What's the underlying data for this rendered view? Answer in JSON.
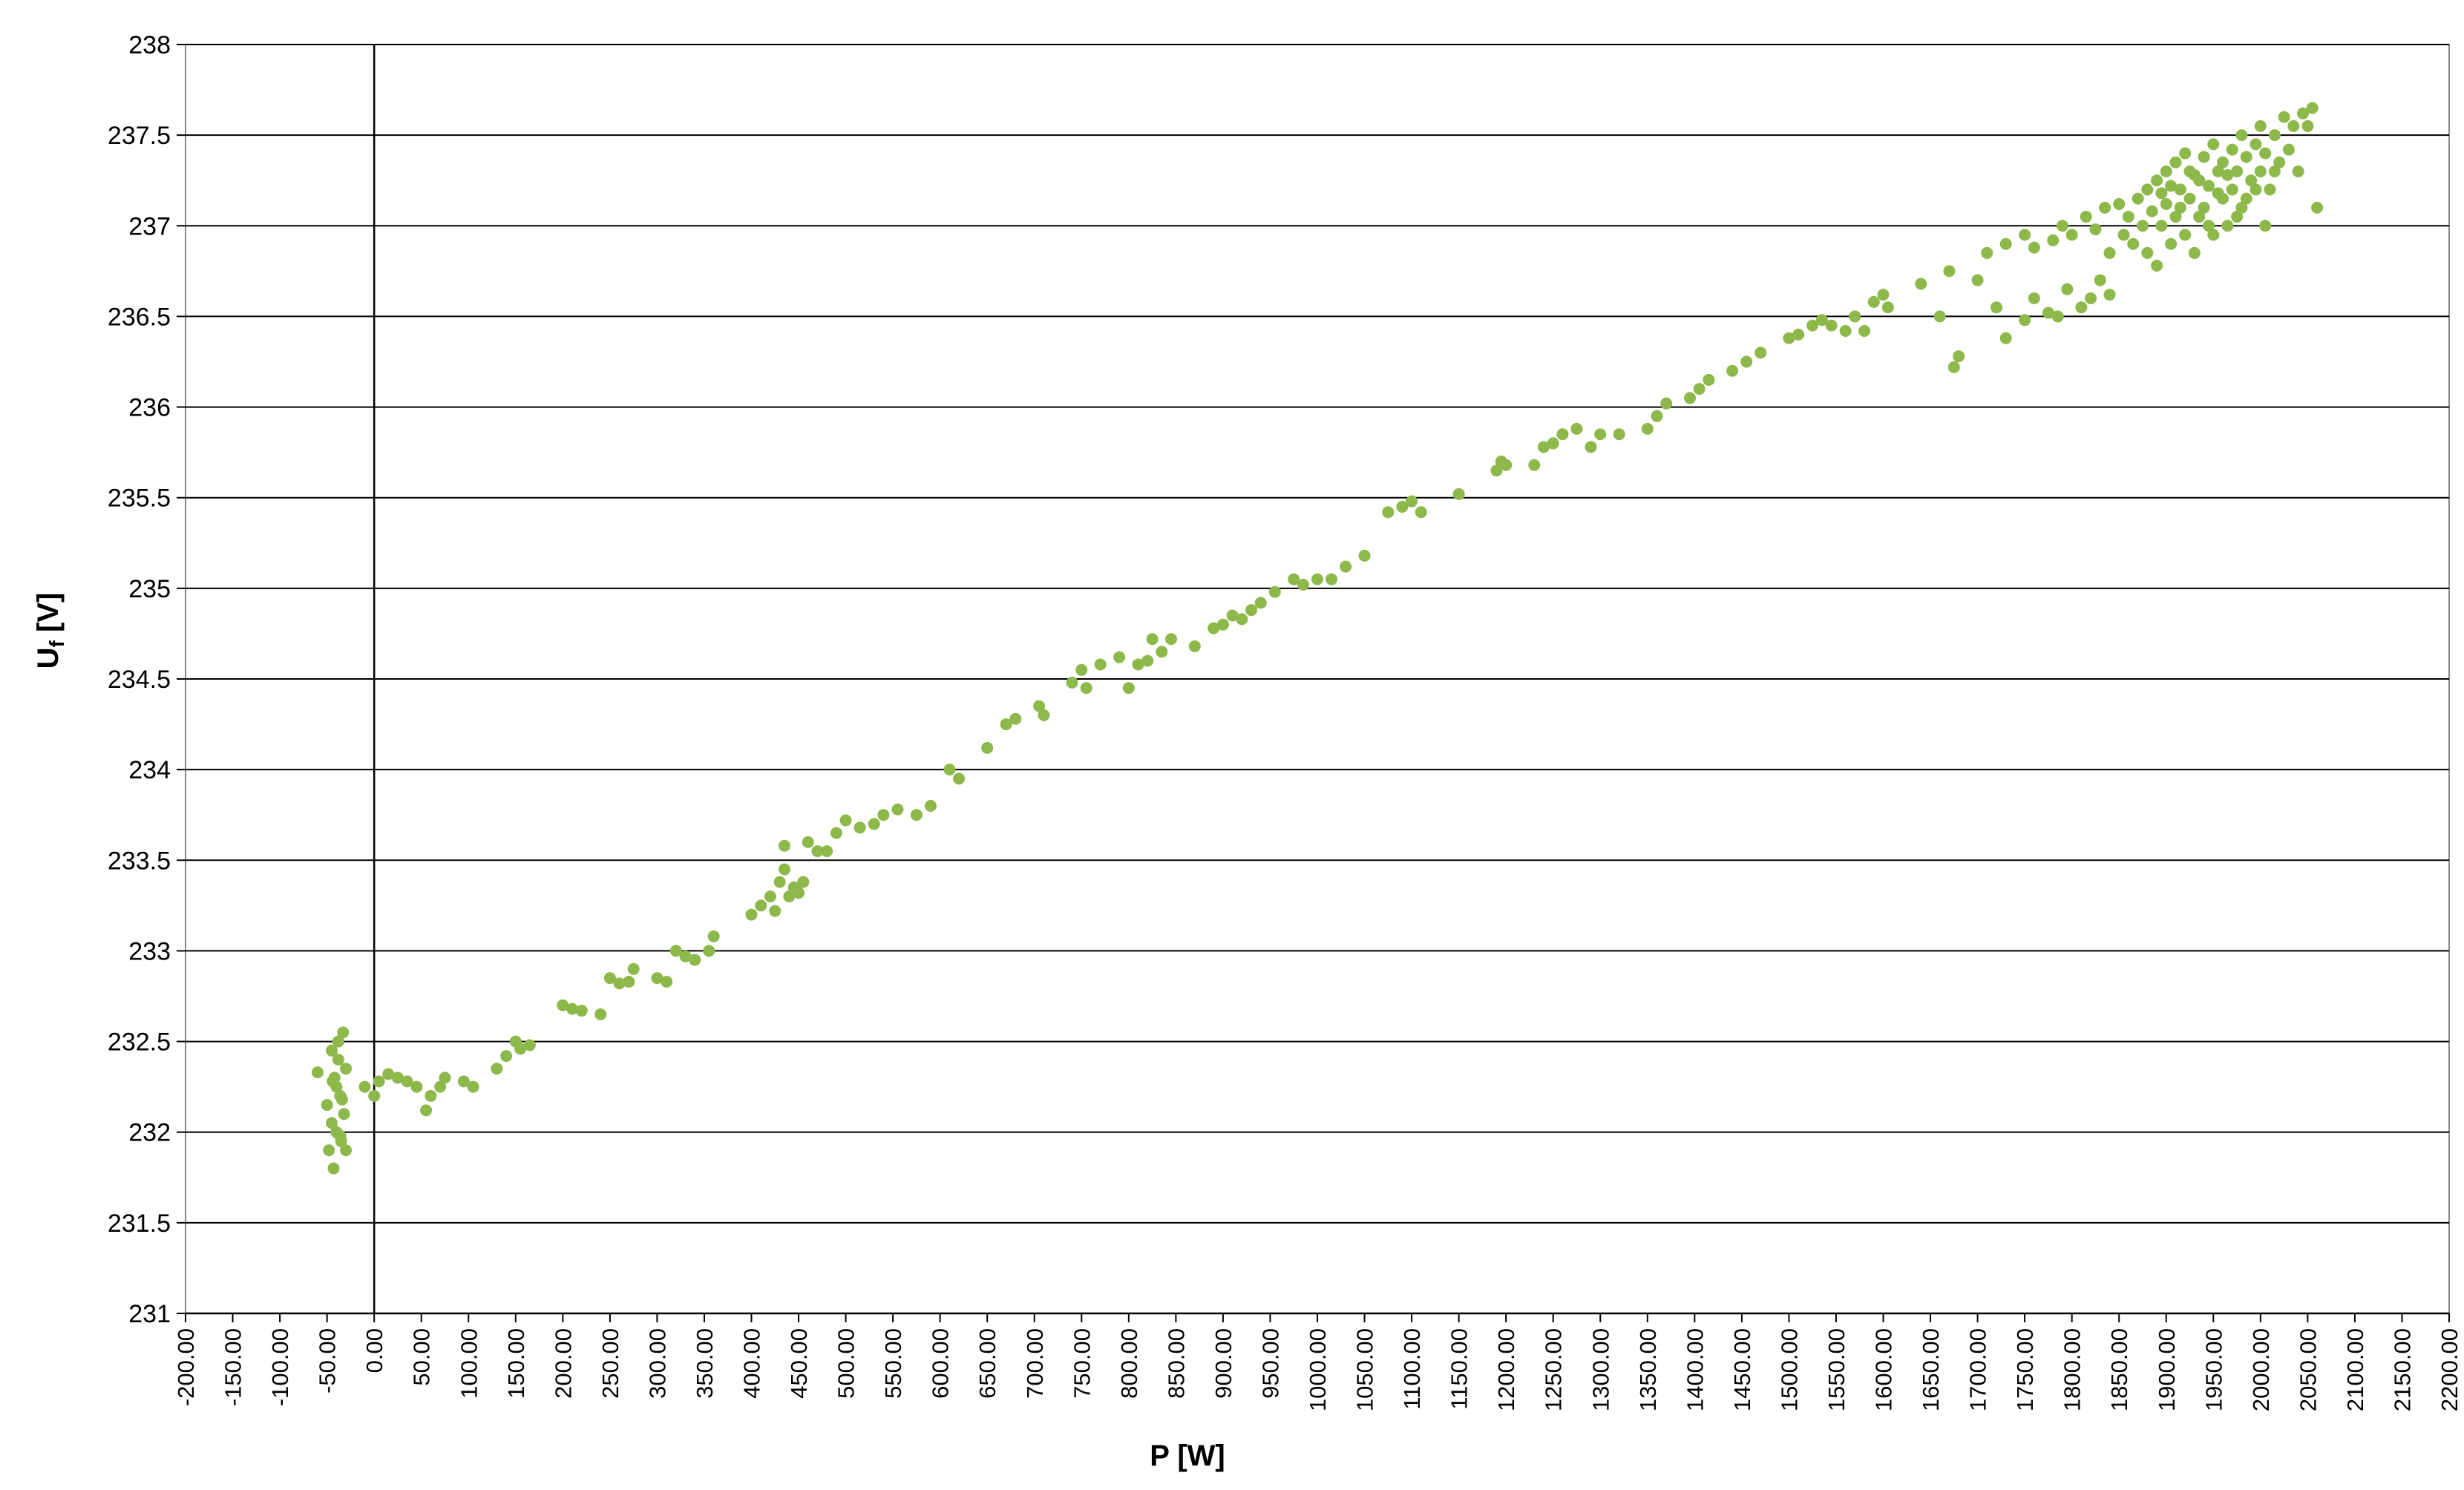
{
  "chart_data": {
    "type": "scatter",
    "title": "",
    "xlabel": "P [W]",
    "ylabel_main": "U",
    "ylabel_sub": "f",
    "ylabel_unit": " [V]",
    "xlim": [
      -200,
      2200
    ],
    "ylim": [
      231,
      238
    ],
    "grid": "horizontal",
    "marker_color": "#8DB84A",
    "xtick_labels": [
      "-200.00",
      "-150.00",
      "-100.00",
      "-50.00",
      "0.00",
      "50.00",
      "100.00",
      "150.00",
      "200.00",
      "250.00",
      "300.00",
      "350.00",
      "400.00",
      "450.00",
      "500.00",
      "550.00",
      "600.00",
      "650.00",
      "700.00",
      "750.00",
      "800.00",
      "850.00",
      "900.00",
      "950.00",
      "1000.00",
      "1050.00",
      "1100.00",
      "1150.00",
      "1200.00",
      "1250.00",
      "1300.00",
      "1350.00",
      "1400.00",
      "1450.00",
      "1500.00",
      "1550.00",
      "1600.00",
      "1650.00",
      "1700.00",
      "1750.00",
      "1800.00",
      "1850.00",
      "1900.00",
      "1950.00",
      "2000.00",
      "2050.00",
      "2100.00",
      "2150.00",
      "2200.00"
    ],
    "ytick_labels": [
      "231",
      "231.5",
      "232",
      "232.5",
      "233",
      "233.5",
      "234",
      "234.5",
      "235",
      "235.5",
      "236",
      "236.5",
      "237",
      "237.5",
      "238"
    ],
    "points": [
      [
        -60,
        232.33
      ],
      [
        -50,
        232.15
      ],
      [
        -48,
        231.9
      ],
      [
        -45,
        232.45
      ],
      [
        -43,
        231.8
      ],
      [
        -42,
        232.3
      ],
      [
        -40,
        232.0
      ],
      [
        -38,
        232.5
      ],
      [
        -36,
        232.2
      ],
      [
        -35,
        231.95
      ],
      [
        -33,
        232.55
      ],
      [
        -32,
        232.1
      ],
      [
        -30,
        232.35
      ],
      [
        -30,
        231.9
      ],
      [
        -45,
        232.05
      ],
      [
        -40,
        232.25
      ],
      [
        -38,
        232.4
      ],
      [
        -36,
        231.98
      ],
      [
        -34,
        232.18
      ],
      [
        -44,
        232.28
      ],
      [
        -10,
        232.25
      ],
      [
        0,
        232.2
      ],
      [
        5,
        232.28
      ],
      [
        15,
        232.32
      ],
      [
        25,
        232.3
      ],
      [
        35,
        232.28
      ],
      [
        45,
        232.25
      ],
      [
        55,
        232.12
      ],
      [
        60,
        232.2
      ],
      [
        70,
        232.25
      ],
      [
        75,
        232.3
      ],
      [
        95,
        232.28
      ],
      [
        105,
        232.25
      ],
      [
        130,
        232.35
      ],
      [
        140,
        232.42
      ],
      [
        150,
        232.5
      ],
      [
        155,
        232.46
      ],
      [
        165,
        232.48
      ],
      [
        200,
        232.7
      ],
      [
        210,
        232.68
      ],
      [
        220,
        232.67
      ],
      [
        240,
        232.65
      ],
      [
        250,
        232.85
      ],
      [
        260,
        232.82
      ],
      [
        270,
        232.83
      ],
      [
        275,
        232.9
      ],
      [
        300,
        232.85
      ],
      [
        310,
        232.83
      ],
      [
        320,
        233.0
      ],
      [
        330,
        232.97
      ],
      [
        340,
        232.95
      ],
      [
        355,
        233.0
      ],
      [
        360,
        233.08
      ],
      [
        400,
        233.2
      ],
      [
        410,
        233.25
      ],
      [
        420,
        233.3
      ],
      [
        425,
        233.22
      ],
      [
        430,
        233.38
      ],
      [
        435,
        233.45
      ],
      [
        440,
        233.3
      ],
      [
        445,
        233.35
      ],
      [
        450,
        233.32
      ],
      [
        455,
        233.38
      ],
      [
        435,
        233.58
      ],
      [
        460,
        233.6
      ],
      [
        470,
        233.55
      ],
      [
        480,
        233.55
      ],
      [
        490,
        233.65
      ],
      [
        500,
        233.72
      ],
      [
        515,
        233.68
      ],
      [
        530,
        233.7
      ],
      [
        540,
        233.75
      ],
      [
        555,
        233.78
      ],
      [
        575,
        233.75
      ],
      [
        590,
        233.8
      ],
      [
        610,
        234.0
      ],
      [
        620,
        233.95
      ],
      [
        650,
        234.12
      ],
      [
        670,
        234.25
      ],
      [
        680,
        234.28
      ],
      [
        705,
        234.35
      ],
      [
        710,
        234.3
      ],
      [
        740,
        234.48
      ],
      [
        750,
        234.55
      ],
      [
        755,
        234.45
      ],
      [
        770,
        234.58
      ],
      [
        790,
        234.62
      ],
      [
        800,
        234.45
      ],
      [
        810,
        234.58
      ],
      [
        820,
        234.6
      ],
      [
        825,
        234.72
      ],
      [
        835,
        234.65
      ],
      [
        845,
        234.72
      ],
      [
        870,
        234.68
      ],
      [
        890,
        234.78
      ],
      [
        900,
        234.8
      ],
      [
        910,
        234.85
      ],
      [
        920,
        234.83
      ],
      [
        930,
        234.88
      ],
      [
        940,
        234.92
      ],
      [
        955,
        234.98
      ],
      [
        975,
        235.05
      ],
      [
        985,
        235.02
      ],
      [
        1000,
        235.05
      ],
      [
        1015,
        235.05
      ],
      [
        1030,
        235.12
      ],
      [
        1050,
        235.18
      ],
      [
        1075,
        235.42
      ],
      [
        1090,
        235.45
      ],
      [
        1100,
        235.48
      ],
      [
        1110,
        235.42
      ],
      [
        1150,
        235.52
      ],
      [
        1190,
        235.65
      ],
      [
        1195,
        235.7
      ],
      [
        1200,
        235.68
      ],
      [
        1230,
        235.68
      ],
      [
        1240,
        235.78
      ],
      [
        1250,
        235.8
      ],
      [
        1260,
        235.85
      ],
      [
        1275,
        235.88
      ],
      [
        1290,
        235.78
      ],
      [
        1300,
        235.85
      ],
      [
        1320,
        235.85
      ],
      [
        1350,
        235.88
      ],
      [
        1360,
        235.95
      ],
      [
        1370,
        236.02
      ],
      [
        1395,
        236.05
      ],
      [
        1405,
        236.1
      ],
      [
        1415,
        236.15
      ],
      [
        1440,
        236.2
      ],
      [
        1455,
        236.25
      ],
      [
        1470,
        236.3
      ],
      [
        1500,
        236.38
      ],
      [
        1510,
        236.4
      ],
      [
        1525,
        236.45
      ],
      [
        1535,
        236.48
      ],
      [
        1545,
        236.45
      ],
      [
        1560,
        236.42
      ],
      [
        1570,
        236.5
      ],
      [
        1580,
        236.42
      ],
      [
        1590,
        236.58
      ],
      [
        1600,
        236.62
      ],
      [
        1605,
        236.55
      ],
      [
        1640,
        236.68
      ],
      [
        1660,
        236.5
      ],
      [
        1670,
        236.75
      ],
      [
        1675,
        236.22
      ],
      [
        1680,
        236.28
      ],
      [
        1700,
        236.7
      ],
      [
        1720,
        236.55
      ],
      [
        1730,
        236.38
      ],
      [
        1750,
        236.48
      ],
      [
        1760,
        236.6
      ],
      [
        1775,
        236.52
      ],
      [
        1785,
        236.5
      ],
      [
        1795,
        236.65
      ],
      [
        1810,
        236.55
      ],
      [
        1820,
        236.6
      ],
      [
        1830,
        236.7
      ],
      [
        1840,
        236.62
      ],
      [
        1710,
        236.85
      ],
      [
        1730,
        236.9
      ],
      [
        1750,
        236.95
      ],
      [
        1760,
        236.88
      ],
      [
        1780,
        236.92
      ],
      [
        1790,
        237.0
      ],
      [
        1800,
        236.95
      ],
      [
        1815,
        237.05
      ],
      [
        1825,
        236.98
      ],
      [
        1835,
        237.1
      ],
      [
        1840,
        236.85
      ],
      [
        1850,
        237.12
      ],
      [
        1855,
        236.95
      ],
      [
        1860,
        237.05
      ],
      [
        1865,
        236.9
      ],
      [
        1870,
        237.15
      ],
      [
        1875,
        237.0
      ],
      [
        1880,
        237.2
      ],
      [
        1880,
        236.85
      ],
      [
        1885,
        237.08
      ],
      [
        1890,
        237.25
      ],
      [
        1890,
        236.78
      ],
      [
        1895,
        237.0
      ],
      [
        1900,
        237.3
      ],
      [
        1900,
        237.12
      ],
      [
        1905,
        236.9
      ],
      [
        1910,
        237.35
      ],
      [
        1910,
        237.05
      ],
      [
        1915,
        237.2
      ],
      [
        1920,
        236.95
      ],
      [
        1920,
        237.4
      ],
      [
        1925,
        237.15
      ],
      [
        1930,
        237.28
      ],
      [
        1930,
        236.85
      ],
      [
        1935,
        237.05
      ],
      [
        1940,
        237.38
      ],
      [
        1940,
        237.1
      ],
      [
        1945,
        237.22
      ],
      [
        1950,
        236.95
      ],
      [
        1950,
        237.45
      ],
      [
        1955,
        237.3
      ],
      [
        1960,
        237.15
      ],
      [
        1960,
        237.35
      ],
      [
        1965,
        237.0
      ],
      [
        1970,
        237.42
      ],
      [
        1970,
        237.2
      ],
      [
        1975,
        237.3
      ],
      [
        1980,
        237.5
      ],
      [
        1980,
        237.1
      ],
      [
        1985,
        237.38
      ],
      [
        1990,
        237.25
      ],
      [
        1995,
        237.45
      ],
      [
        2000,
        237.55
      ],
      [
        2000,
        237.3
      ],
      [
        2005,
        237.4
      ],
      [
        2010,
        237.2
      ],
      [
        2015,
        237.5
      ],
      [
        2020,
        237.35
      ],
      [
        2025,
        237.6
      ],
      [
        2030,
        237.42
      ],
      [
        2035,
        237.55
      ],
      [
        2040,
        237.3
      ],
      [
        2045,
        237.62
      ],
      [
        2050,
        237.55
      ],
      [
        2055,
        237.65
      ],
      [
        2060,
        237.1
      ],
      [
        1895,
        237.18
      ],
      [
        1905,
        237.22
      ],
      [
        1915,
        237.1
      ],
      [
        1925,
        237.3
      ],
      [
        1935,
        237.25
      ],
      [
        1945,
        237.0
      ],
      [
        1955,
        237.18
      ],
      [
        1965,
        237.28
      ],
      [
        1975,
        237.05
      ],
      [
        1985,
        237.15
      ],
      [
        1995,
        237.2
      ],
      [
        2005,
        237.0
      ],
      [
        2015,
        237.3
      ]
    ]
  }
}
